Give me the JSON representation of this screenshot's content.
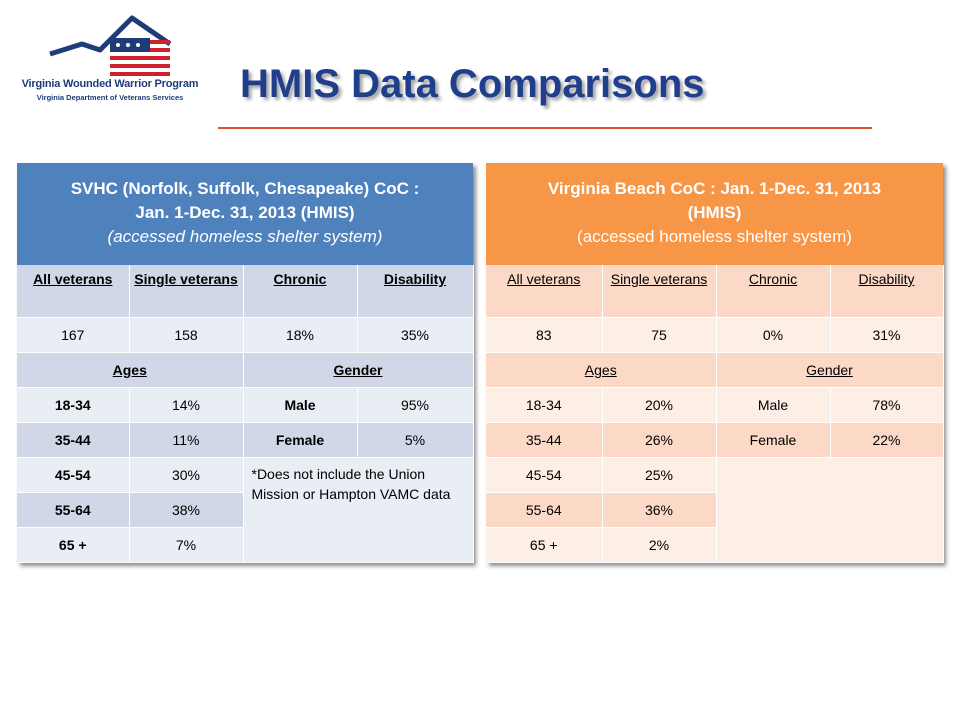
{
  "logo": {
    "title": "Virginia Wounded Warrior Program",
    "subtitle": "Virginia Department of Veterans Services",
    "colors": {
      "navy": "#1f3c78",
      "red": "#d0202c"
    }
  },
  "page_title": "HMIS Data Comparisons",
  "colors": {
    "accent_rule": "#d8572a",
    "left_header": "#4f81bd",
    "right_header": "#f79646"
  },
  "svhc": {
    "title": "SVHC (Norfolk, Suffolk, Chesapeake) CoC :",
    "dates": "Jan. 1-Dec. 31, 2013 (HMIS)",
    "subtitle": "(accessed homeless shelter system)",
    "headers": [
      "All veterans",
      "Single veterans",
      "Chronic",
      "Disability"
    ],
    "values": [
      "167",
      "158",
      "18%",
      "35%"
    ],
    "ages_label": "Ages",
    "gender_label": "Gender",
    "ages": [
      {
        "range": "18-34",
        "pct": "14%"
      },
      {
        "range": "35-44",
        "pct": "11%"
      },
      {
        "range": "45-54",
        "pct": "30%"
      },
      {
        "range": "55-64",
        "pct": "38%"
      },
      {
        "range": "65 +",
        "pct": "7%"
      }
    ],
    "gender": [
      {
        "label": "Male",
        "pct": "95%"
      },
      {
        "label": "Female",
        "pct": "5%"
      }
    ],
    "note": "*Does not include the Union Mission or Hampton VAMC data"
  },
  "vb": {
    "title": "Virginia Beach CoC : Jan. 1-Dec. 31, 2013",
    "dates": "(HMIS)",
    "subtitle": "(accessed homeless shelter system)",
    "headers": [
      "All veterans",
      "Single veterans",
      "Chronic",
      "Disability"
    ],
    "values": [
      "83",
      "75",
      "0%",
      "31%"
    ],
    "ages_label": "Ages",
    "gender_label": "Gender",
    "ages": [
      {
        "range": "18-34",
        "pct": "20%"
      },
      {
        "range": "35-44",
        "pct": "26%"
      },
      {
        "range": "45-54",
        "pct": "25%"
      },
      {
        "range": "55-64",
        "pct": "36%"
      },
      {
        "range": "65 +",
        "pct": "2%"
      }
    ],
    "gender": [
      {
        "label": "Male",
        "pct": "78%"
      },
      {
        "label": "Female",
        "pct": "22%"
      }
    ]
  }
}
